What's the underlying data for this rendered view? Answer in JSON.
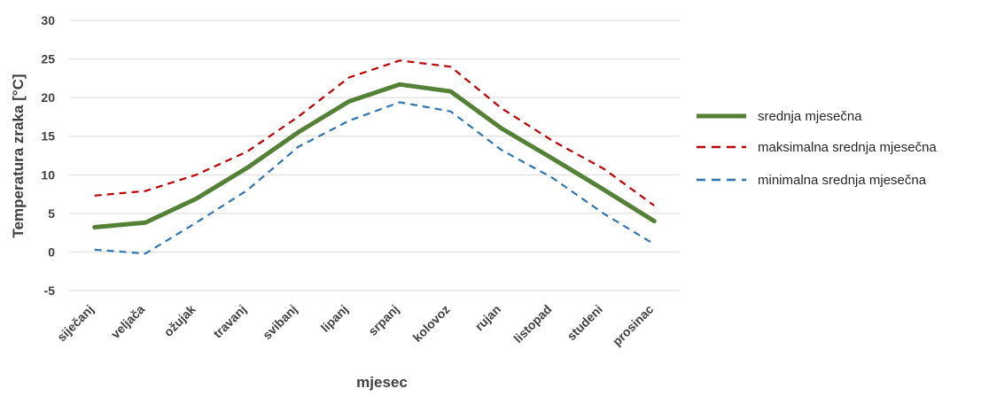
{
  "chart_data": {
    "type": "line",
    "xlabel": "mjesec",
    "ylabel": "Temperatura zraka [°C]",
    "ylim": [
      -5,
      30
    ],
    "yticks": [
      -5,
      0,
      5,
      10,
      15,
      20,
      25,
      30
    ],
    "grid": true,
    "legend_position": "right",
    "categories": [
      "siječanj",
      "veljača",
      "ožujak",
      "travanj",
      "svibanj",
      "lipanj",
      "srpanj",
      "kolovoz",
      "rujan",
      "listopad",
      "studeni",
      "prosinac"
    ],
    "series": [
      {
        "name": "srednja mjesečna",
        "color": "#538135",
        "style": "solid",
        "values": [
          3.2,
          3.8,
          6.9,
          10.9,
          15.5,
          19.5,
          21.7,
          20.8,
          16.0,
          12.1,
          8.1,
          4.0
        ]
      },
      {
        "name": "maksimalna srednja mjesečna",
        "color": "#c00000",
        "style": "dashed",
        "values": [
          7.3,
          7.9,
          10.0,
          13.0,
          17.5,
          22.6,
          24.8,
          24.0,
          18.6,
          14.4,
          10.8,
          6.0
        ]
      },
      {
        "name": "minimalna srednja mjesečna",
        "color": "#2e75b6",
        "style": "dashed",
        "values": [
          0.3,
          -0.2,
          3.8,
          8.0,
          13.6,
          17.0,
          19.4,
          18.2,
          13.2,
          9.6,
          5.0,
          1.0
        ]
      }
    ]
  }
}
